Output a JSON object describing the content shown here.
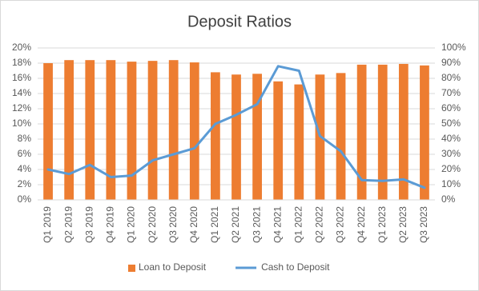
{
  "chart_data": {
    "type": "combo",
    "title": "Deposit Ratios",
    "categories": [
      "Q1 2019",
      "Q2 2019",
      "Q3 2019",
      "Q4 2019",
      "Q1 2020",
      "Q2 2020",
      "Q3 2020",
      "Q4 2020",
      "Q1 2021",
      "Q2 2021",
      "Q3 2021",
      "Q4 2021",
      "Q1 2022",
      "Q2 2022",
      "Q3 2022",
      "Q4 2022",
      "Q1 2023",
      "Q2 2023",
      "Q3 2023"
    ],
    "series": [
      {
        "name": "Loan to Deposit",
        "type": "bar",
        "color": "#ed7d31",
        "values": [
          18.0,
          18.4,
          18.4,
          18.4,
          18.2,
          18.3,
          18.4,
          18.1,
          16.8,
          16.5,
          16.6,
          15.6,
          15.2,
          16.5,
          16.7,
          17.8,
          17.8,
          17.9,
          17.7
        ]
      },
      {
        "name": "Cash to Deposit",
        "type": "line",
        "axis": "y2",
        "color": "#5b9bd5",
        "values": [
          20,
          17,
          23,
          15,
          16,
          26,
          30,
          34,
          50,
          56,
          63,
          88,
          85,
          42,
          32,
          13,
          12.5,
          13.5,
          8
        ]
      }
    ],
    "ylim": [
      0,
      20
    ],
    "yticks": [
      {
        "value": 0,
        "label": "0%"
      },
      {
        "value": 2,
        "label": "2%"
      },
      {
        "value": 4,
        "label": "4%"
      },
      {
        "value": 6,
        "label": "6%"
      },
      {
        "value": 8,
        "label": "8%"
      },
      {
        "value": 10,
        "label": "10%"
      },
      {
        "value": 12,
        "label": "12%"
      },
      {
        "value": 14,
        "label": "14%"
      },
      {
        "value": 16,
        "label": "16%"
      },
      {
        "value": 18,
        "label": "18%"
      },
      {
        "value": 20,
        "label": "20%"
      }
    ],
    "y2lim": [
      0,
      100
    ],
    "y2ticks": [
      {
        "value": 0,
        "label": "0%"
      },
      {
        "value": 10,
        "label": "10%"
      },
      {
        "value": 20,
        "label": "20%"
      },
      {
        "value": 30,
        "label": "30%"
      },
      {
        "value": 40,
        "label": "40%"
      },
      {
        "value": 50,
        "label": "50%"
      },
      {
        "value": 60,
        "label": "60%"
      },
      {
        "value": 70,
        "label": "70%"
      },
      {
        "value": 80,
        "label": "80%"
      },
      {
        "value": 90,
        "label": "90%"
      },
      {
        "value": 100,
        "label": "100%"
      }
    ],
    "grid": true,
    "legend": "bottom"
  }
}
